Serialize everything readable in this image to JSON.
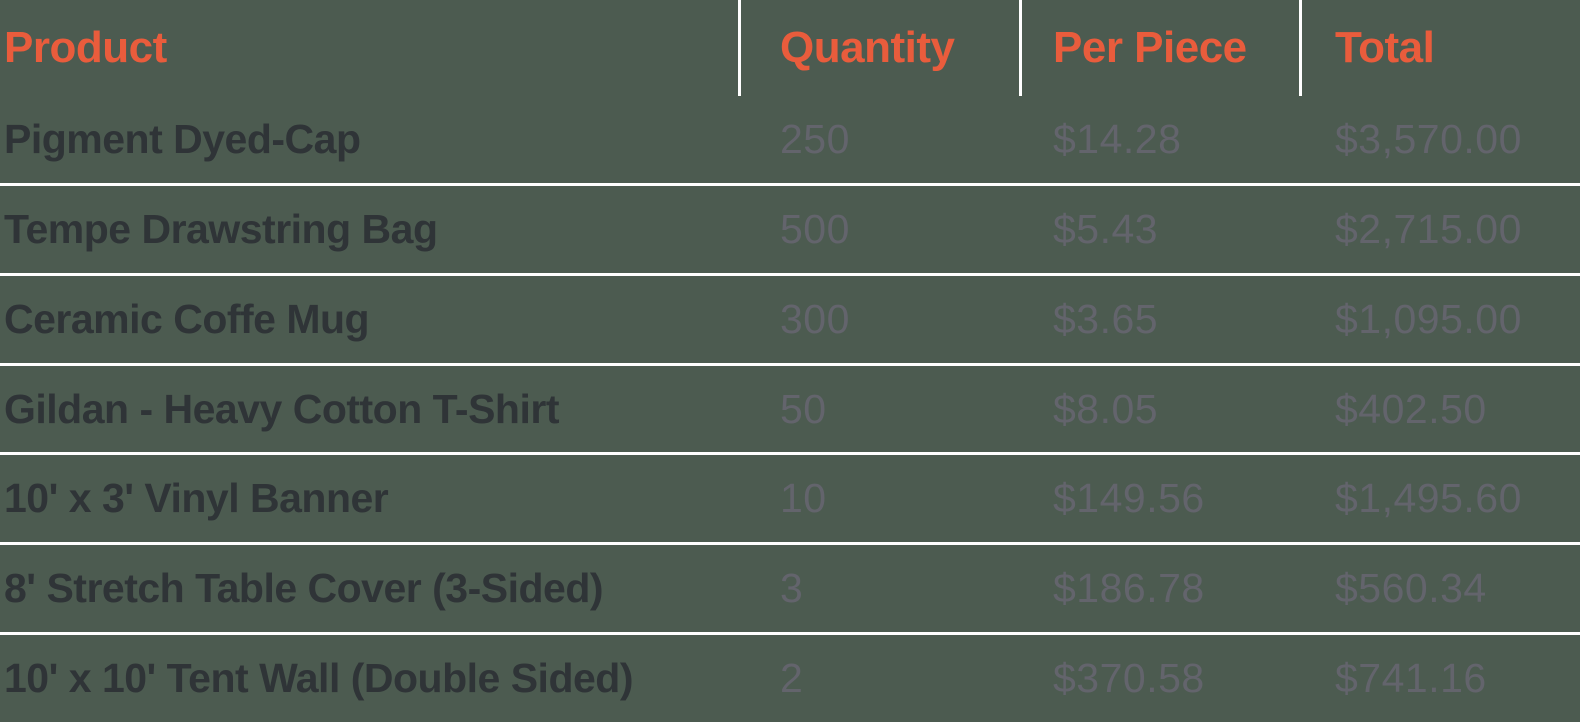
{
  "theme": {
    "background": "#4C5B50",
    "header_color": "#E95C3C",
    "product_color": "#2F3437",
    "value_color": "#63646C",
    "divider_color": "#FFFFFF"
  },
  "table": {
    "columns": [
      {
        "key": "product",
        "label": "Product"
      },
      {
        "key": "quantity",
        "label": "Quantity"
      },
      {
        "key": "per_piece",
        "label": "Per Piece"
      },
      {
        "key": "total",
        "label": "Total"
      }
    ],
    "rows": [
      {
        "product": "Pigment Dyed-Cap",
        "quantity": "250",
        "per_piece": "$14.28",
        "total": "$3,570.00"
      },
      {
        "product": "Tempe Drawstring Bag",
        "quantity": "500",
        "per_piece": "$5.43",
        "total": "$2,715.00"
      },
      {
        "product": "Ceramic Coffe Mug",
        "quantity": "300",
        "per_piece": "$3.65",
        "total": "$1,095.00"
      },
      {
        "product": "Gildan - Heavy Cotton T-Shirt",
        "quantity": "50",
        "per_piece": "$8.05",
        "total": "$402.50"
      },
      {
        "product": "10' x 3' Vinyl Banner",
        "quantity": "10",
        "per_piece": "$149.56",
        "total": "$1,495.60"
      },
      {
        "product": "8' Stretch Table Cover (3-Sided)",
        "quantity": "3",
        "per_piece": "$186.78",
        "total": "$560.34"
      },
      {
        "product": "10' x 10' Tent Wall (Double Sided)",
        "quantity": "2",
        "per_piece": "$370.58",
        "total": "$741.16"
      }
    ]
  }
}
